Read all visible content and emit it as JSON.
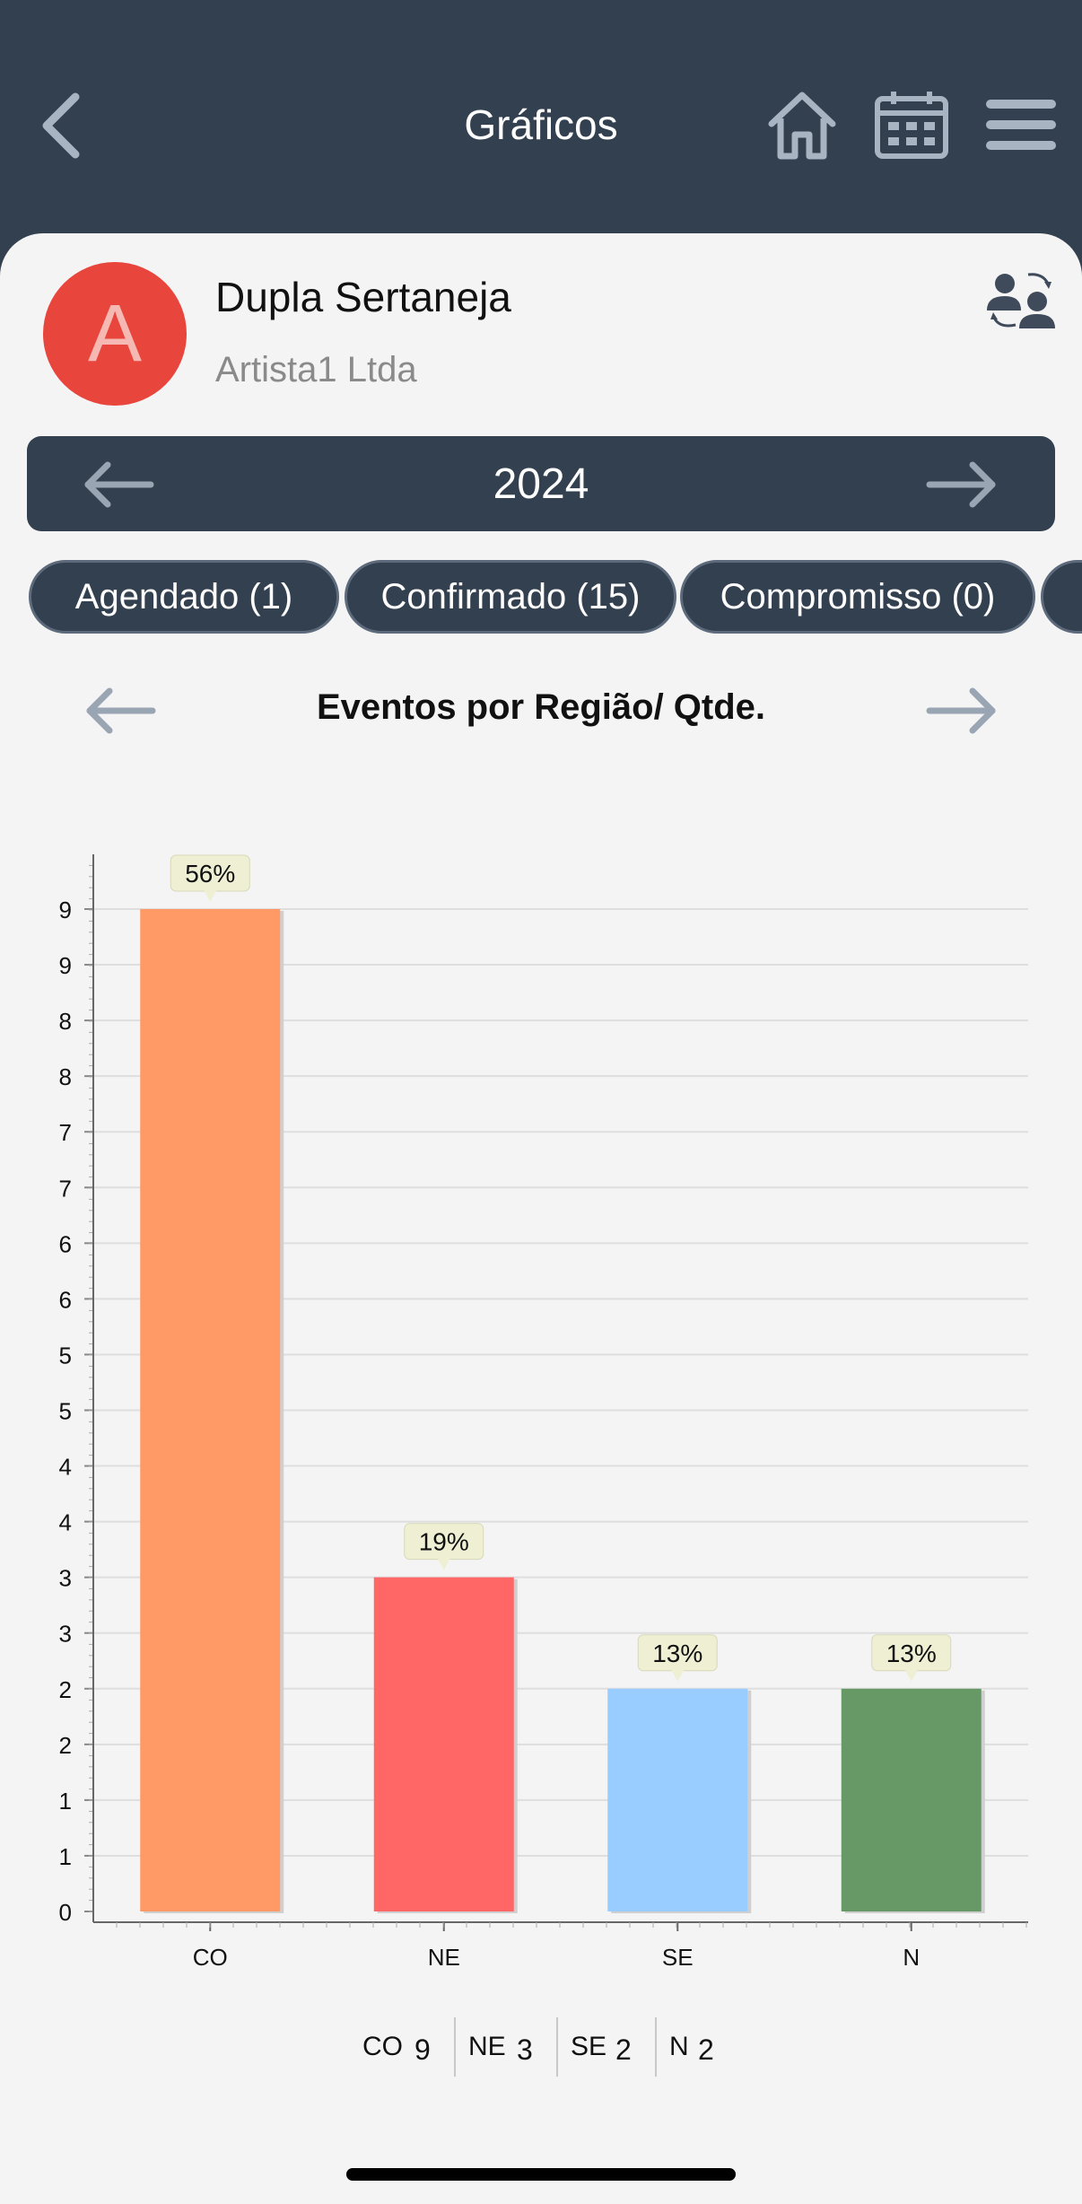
{
  "header": {
    "title": "Gráficos",
    "icons": [
      "back-icon",
      "home-icon",
      "calendar-icon",
      "menu-icon"
    ]
  },
  "profile": {
    "initial": "A",
    "name": "Dupla Sertaneja",
    "company": "Artista1 Ltda",
    "avatar_color": "#e8453c"
  },
  "year_nav": {
    "year": "2024"
  },
  "tabs": [
    {
      "label": "Agendado (1)"
    },
    {
      "label": "Confirmado (15)"
    },
    {
      "label": "Compromisso (0)"
    }
  ],
  "chart_nav": {
    "title": "Eventos por Região/ Qtde."
  },
  "chart_data": {
    "type": "bar",
    "categories": [
      "CO",
      "NE",
      "SE",
      "N"
    ],
    "values": [
      9,
      3,
      2,
      2
    ],
    "percent_labels": [
      "56%",
      "19%",
      "13%",
      "13%"
    ],
    "colors": [
      "#ff9966",
      "#ff6666",
      "#99ccff",
      "#669966"
    ],
    "y_tick_labels": [
      "0",
      "1",
      "1",
      "2",
      "2",
      "3",
      "3",
      "4",
      "4",
      "5",
      "5",
      "6",
      "6",
      "7",
      "7",
      "8",
      "8",
      "9",
      "9"
    ],
    "ylim": [
      0,
      9
    ],
    "grid": true
  },
  "legend": [
    {
      "label": "CO",
      "value": "9"
    },
    {
      "label": "NE",
      "value": "3"
    },
    {
      "label": "SE",
      "value": "2"
    },
    {
      "label": "N",
      "value": "2"
    }
  ]
}
